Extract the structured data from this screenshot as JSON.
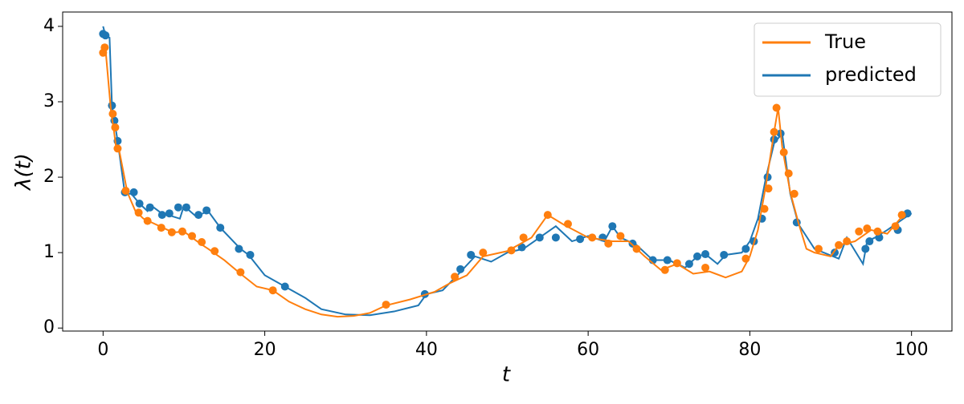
{
  "chart_data": {
    "type": "line",
    "x_label": "t",
    "y_label": "λ(t)",
    "xlim": [
      -5,
      105
    ],
    "ylim": [
      -0.04,
      4.19
    ],
    "xticks": [
      0,
      20,
      40,
      60,
      80,
      100
    ],
    "yticks": [
      0,
      1,
      2,
      3,
      4
    ],
    "legend": "upper right",
    "series": [
      {
        "name": "True",
        "color": "#ff7f0e",
        "x": [
          0,
          0.3,
          1,
          1.3,
          1.6,
          2,
          3,
          4,
          5,
          6,
          7,
          8,
          9,
          10,
          11,
          12,
          13,
          15,
          17,
          19,
          21,
          23,
          25,
          27,
          29,
          31,
          33,
          35,
          38,
          41,
          43,
          45,
          47,
          50,
          53,
          55,
          57,
          60,
          63,
          65,
          67,
          69,
          71,
          73,
          75,
          77,
          79,
          80,
          81,
          82,
          83,
          83.5,
          84,
          85,
          86,
          87,
          88,
          90,
          91,
          93,
          95,
          97,
          99
        ],
        "values": [
          3.65,
          3.7,
          2.85,
          2.65,
          2.4,
          2.35,
          1.8,
          1.55,
          1.45,
          1.4,
          1.35,
          1.3,
          1.27,
          1.28,
          1.2,
          1.12,
          1.05,
          0.9,
          0.72,
          0.55,
          0.5,
          0.35,
          0.25,
          0.18,
          0.15,
          0.16,
          0.2,
          0.3,
          0.38,
          0.48,
          0.6,
          0.7,
          0.95,
          1.02,
          1.2,
          1.5,
          1.37,
          1.2,
          1.15,
          1.15,
          0.95,
          0.77,
          0.85,
          0.72,
          0.75,
          0.67,
          0.75,
          0.95,
          1.3,
          1.9,
          2.6,
          2.92,
          2.4,
          1.8,
          1.4,
          1.05,
          1.0,
          0.95,
          1.1,
          1.15,
          1.3,
          1.25,
          1.5
        ],
        "event_x": [
          0,
          0.2,
          1.2,
          1.5,
          1.8,
          2.8,
          4.4,
          5.5,
          7.2,
          8.5,
          9.8,
          11,
          12.2,
          13.8,
          17,
          21,
          35,
          43.5,
          47,
          50.5,
          52,
          55,
          57.5,
          60.5,
          62.5,
          64,
          66,
          69.5,
          71,
          74.5,
          79.5,
          81.8,
          82.3,
          83,
          83.3,
          84.2,
          84.8,
          85.5,
          88.5,
          91,
          92,
          93.5,
          94.5,
          95.8,
          98,
          98.8
        ],
        "event_values": [
          3.65,
          3.72,
          2.84,
          2.66,
          2.38,
          1.82,
          1.53,
          1.42,
          1.33,
          1.27,
          1.28,
          1.22,
          1.14,
          1.02,
          0.74,
          0.5,
          0.31,
          0.68,
          1.0,
          1.03,
          1.2,
          1.5,
          1.38,
          1.2,
          1.12,
          1.22,
          1.05,
          0.77,
          0.86,
          0.8,
          0.92,
          1.58,
          1.85,
          2.6,
          2.92,
          2.33,
          2.05,
          1.78,
          1.05,
          1.1,
          1.15,
          1.28,
          1.32,
          1.28,
          1.35,
          1.5
        ]
      },
      {
        "name": "predicted",
        "color": "#1f77b4",
        "x": [
          0,
          0.3,
          0.8,
          1.1,
          1.4,
          1.8,
          2.7,
          3.5,
          4.5,
          5.5,
          6,
          7.5,
          8,
          9.5,
          10,
          11.5,
          13,
          14.5,
          17,
          18,
          20,
          22.5,
          25,
          27,
          30,
          33,
          36,
          39,
          40,
          42,
          44,
          46,
          48,
          50,
          52,
          54,
          56,
          58,
          60,
          62,
          63,
          64,
          66,
          68,
          70,
          72,
          73.5,
          74.5,
          76,
          77,
          79,
          80,
          81,
          82,
          83,
          84,
          85,
          86,
          88,
          91,
          92,
          94,
          94.5,
          95.5,
          97,
          99,
          100
        ],
        "values": [
          4.0,
          3.88,
          3.85,
          2.95,
          2.75,
          2.48,
          1.78,
          1.78,
          1.65,
          1.55,
          1.62,
          1.5,
          1.5,
          1.45,
          1.62,
          1.48,
          1.55,
          1.33,
          1.05,
          0.97,
          0.7,
          0.55,
          0.4,
          0.25,
          0.18,
          0.17,
          0.22,
          0.3,
          0.45,
          0.5,
          0.72,
          0.95,
          0.88,
          1.0,
          1.05,
          1.2,
          1.35,
          1.15,
          1.22,
          1.15,
          1.35,
          1.2,
          1.1,
          0.9,
          0.9,
          0.8,
          0.95,
          0.98,
          0.85,
          0.97,
          1.0,
          1.15,
          1.45,
          2.0,
          2.45,
          2.58,
          1.78,
          1.38,
          1.05,
          0.92,
          1.2,
          0.85,
          1.15,
          1.2,
          1.3,
          1.45,
          1.52
        ],
        "event_x": [
          0,
          0.3,
          1.1,
          1.4,
          1.8,
          2.7,
          3.8,
          4.5,
          5.8,
          7.3,
          8.2,
          9.3,
          10.3,
          11.8,
          12.8,
          14.5,
          16.8,
          18.2,
          22.5,
          39.8,
          44.2,
          45.5,
          51.8,
          54,
          56,
          59,
          61.8,
          63,
          65.5,
          68,
          69.8,
          72.5,
          73.5,
          74.5,
          76.8,
          79.5,
          80.5,
          81.5,
          82.2,
          83,
          83.8,
          85.8,
          90.5,
          94.3,
          94.8,
          96,
          98.3,
          99.5
        ],
        "event_values": [
          3.9,
          3.88,
          2.95,
          2.75,
          2.48,
          1.8,
          1.8,
          1.65,
          1.6,
          1.5,
          1.52,
          1.6,
          1.6,
          1.5,
          1.56,
          1.33,
          1.05,
          0.97,
          0.55,
          0.45,
          0.78,
          0.97,
          1.07,
          1.2,
          1.2,
          1.18,
          1.2,
          1.35,
          1.12,
          0.9,
          0.9,
          0.85,
          0.95,
          0.98,
          0.97,
          1.05,
          1.15,
          1.45,
          2.0,
          2.5,
          2.58,
          1.4,
          1.0,
          1.05,
          1.15,
          1.2,
          1.3,
          1.52
        ]
      }
    ]
  }
}
